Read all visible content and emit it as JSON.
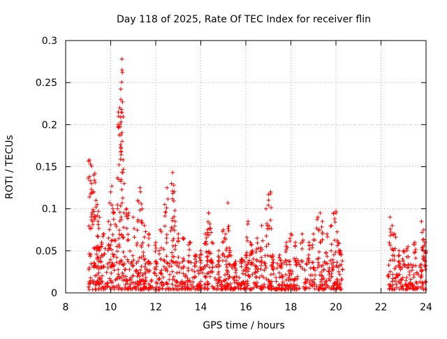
{
  "chart_data": {
    "type": "scatter",
    "title": "Day 118 of 2025, Rate Of TEC Index for receiver flin",
    "xlabel": "GPS time / hours",
    "ylabel": "ROTI / TECUs",
    "xlim": [
      8,
      24
    ],
    "ylim": [
      0,
      0.3
    ],
    "x_ticks": [
      8,
      10,
      12,
      14,
      16,
      18,
      20,
      22,
      24
    ],
    "x_tick_labels": [
      "8",
      "10",
      "12",
      "14",
      "16",
      "18",
      "20",
      "22",
      "24"
    ],
    "y_ticks": [
      0,
      0.05,
      0.1,
      0.15,
      0.2,
      0.25,
      0.3
    ],
    "y_tick_labels": [
      "0",
      "0.05",
      "0.1",
      "0.15",
      "0.2",
      "0.25",
      "0.3"
    ],
    "grid": true,
    "marker": "+",
    "color": "#ff0000",
    "segments": [
      {
        "start": 9.0,
        "end": 20.3,
        "base_max": 0.035
      },
      {
        "start": 22.3,
        "end": 24.0,
        "base_max": 0.03
      }
    ],
    "series": [
      {
        "name": "ROTI",
        "points": [
          [
            9.05,
            0.158
          ],
          [
            9.1,
            0.153
          ],
          [
            9.15,
            0.13
          ],
          [
            9.2,
            0.12
          ],
          [
            9.25,
            0.14
          ],
          [
            9.3,
            0.142
          ],
          [
            9.35,
            0.11
          ],
          [
            9.4,
            0.105
          ],
          [
            9.45,
            0.097
          ],
          [
            9.5,
            0.09
          ],
          [
            9.6,
            0.06
          ],
          [
            9.7,
            0.07
          ],
          [
            9.9,
            0.085
          ],
          [
            10.0,
            0.12
          ],
          [
            10.05,
            0.127
          ],
          [
            10.1,
            0.1
          ],
          [
            10.15,
            0.095
          ],
          [
            10.3,
            0.1
          ],
          [
            10.35,
            0.21
          ],
          [
            10.4,
            0.22
          ],
          [
            10.42,
            0.2
          ],
          [
            10.45,
            0.23
          ],
          [
            10.48,
            0.215
          ],
          [
            10.5,
            0.265
          ],
          [
            10.52,
            0.262
          ],
          [
            10.5,
            0.278
          ],
          [
            10.55,
            0.158
          ],
          [
            10.6,
            0.13
          ],
          [
            10.7,
            0.1
          ],
          [
            10.8,
            0.095
          ],
          [
            11.0,
            0.09
          ],
          [
            11.2,
            0.11
          ],
          [
            11.3,
            0.125
          ],
          [
            11.4,
            0.1
          ],
          [
            11.5,
            0.08
          ],
          [
            11.7,
            0.07
          ],
          [
            12.0,
            0.06
          ],
          [
            12.2,
            0.075
          ],
          [
            12.4,
            0.105
          ],
          [
            12.5,
            0.125
          ],
          [
            12.7,
            0.13
          ],
          [
            12.75,
            0.143
          ],
          [
            12.8,
            0.128
          ],
          [
            12.85,
            0.098
          ],
          [
            13.0,
            0.07
          ],
          [
            13.2,
            0.065
          ],
          [
            13.5,
            0.06
          ],
          [
            13.8,
            0.045
          ],
          [
            14.0,
            0.05
          ],
          [
            14.2,
            0.07
          ],
          [
            14.3,
            0.075
          ],
          [
            14.35,
            0.095
          ],
          [
            14.4,
            0.082
          ],
          [
            14.5,
            0.06
          ],
          [
            14.8,
            0.05
          ],
          [
            15.0,
            0.075
          ],
          [
            15.1,
            0.07
          ],
          [
            15.2,
            0.107
          ],
          [
            15.3,
            0.05
          ],
          [
            15.5,
            0.035
          ],
          [
            15.8,
            0.04
          ],
          [
            16.0,
            0.045
          ],
          [
            16.1,
            0.085
          ],
          [
            16.2,
            0.06
          ],
          [
            16.3,
            0.05
          ],
          [
            16.5,
            0.065
          ],
          [
            16.7,
            0.08
          ],
          [
            16.9,
            0.1
          ],
          [
            17.0,
            0.117
          ],
          [
            17.1,
            0.12
          ],
          [
            17.2,
            0.045
          ],
          [
            17.5,
            0.045
          ],
          [
            17.8,
            0.06
          ],
          [
            18.0,
            0.07
          ],
          [
            18.2,
            0.06
          ],
          [
            18.5,
            0.07
          ],
          [
            18.8,
            0.06
          ],
          [
            19.0,
            0.07
          ],
          [
            19.2,
            0.09
          ],
          [
            19.3,
            0.095
          ],
          [
            19.4,
            0.085
          ],
          [
            19.6,
            0.07
          ],
          [
            19.8,
            0.08
          ],
          [
            19.9,
            0.095
          ],
          [
            20.0,
            0.097
          ],
          [
            20.1,
            0.06
          ],
          [
            20.2,
            0.05
          ],
          [
            22.4,
            0.09
          ],
          [
            22.5,
            0.08
          ],
          [
            22.6,
            0.07
          ],
          [
            22.8,
            0.05
          ],
          [
            23.0,
            0.05
          ],
          [
            23.2,
            0.055
          ],
          [
            23.5,
            0.06
          ],
          [
            23.8,
            0.085
          ],
          [
            23.9,
            0.075
          ],
          [
            23.95,
            0.06
          ],
          [
            24.0,
            0.05
          ]
        ]
      }
    ]
  }
}
